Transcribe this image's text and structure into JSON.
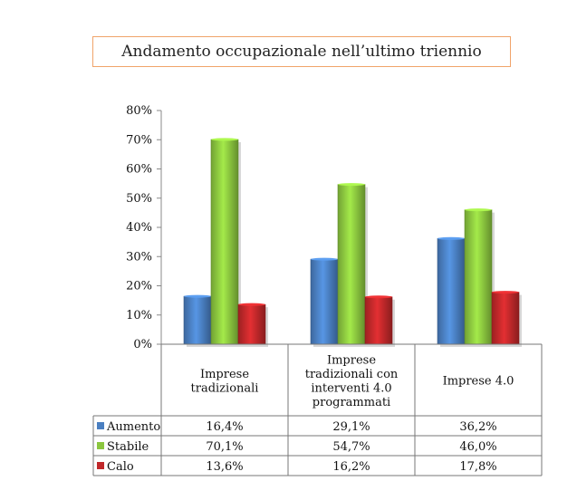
{
  "chart_data": {
    "type": "bar",
    "title": "Andamento occupazionale nell’ultimo triennio",
    "categories": [
      [
        "Imprese",
        "tradizionali"
      ],
      [
        "Imprese",
        "tradizionali con",
        "interventi 4.0",
        "programmati"
      ],
      [
        "Imprese 4.0"
      ]
    ],
    "series": [
      {
        "name": "Aumento",
        "color": "#4a7fc1",
        "values": [
          16.4,
          29.1,
          36.2
        ],
        "labels": [
          "16,4%",
          "29,1%",
          "36,2%"
        ]
      },
      {
        "name": "Stabile",
        "color": "#8bc63f",
        "values": [
          70.1,
          54.7,
          46.0
        ],
        "labels": [
          "70,1%",
          "54,7%",
          "46,0%"
        ]
      },
      {
        "name": "Calo",
        "color": "#c0282a",
        "values": [
          13.6,
          16.2,
          17.8
        ],
        "labels": [
          "13,6%",
          "16,2%",
          "17,8%"
        ]
      }
    ],
    "ylim": [
      0,
      80
    ],
    "yticks": [
      "0%",
      "10%",
      "20%",
      "30%",
      "40%",
      "50%",
      "60%",
      "70%",
      "80%"
    ],
    "grid": false,
    "legend": "data-table"
  }
}
